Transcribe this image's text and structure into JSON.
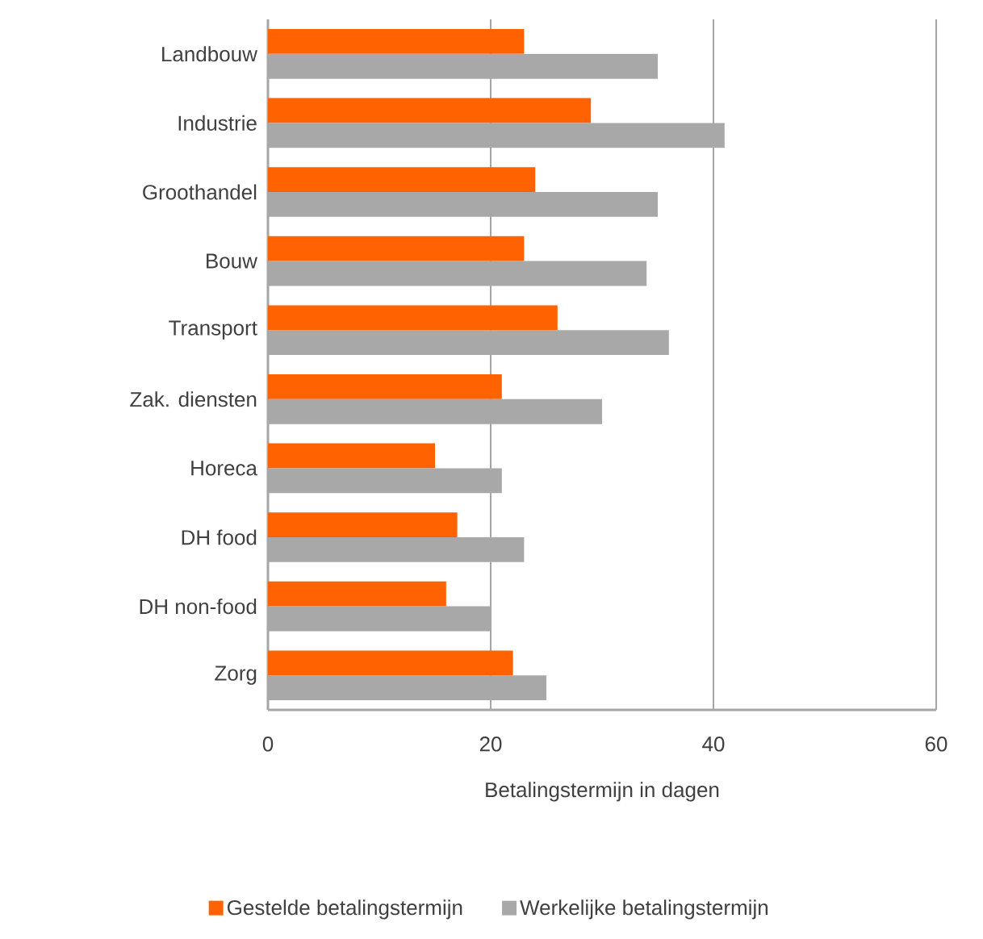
{
  "chart_data": {
    "type": "bar",
    "orientation": "horizontal",
    "xlabel": "Betalingstermijn in dagen",
    "categories": [
      "Landbouw",
      "Industrie",
      "Groothandel",
      "Bouw",
      "Transport",
      "Zak. diensten",
      "Horeca",
      "DH food",
      "DH non-food",
      "Zorg"
    ],
    "series": [
      {
        "name": "Gestelde betalingstermijn",
        "color": "#ff6200",
        "values": [
          23,
          29,
          24,
          23,
          26,
          21,
          15,
          17,
          16,
          22
        ]
      },
      {
        "name": "Werkelijke betalingstermijn",
        "color": "#a8a8a8",
        "values": [
          35,
          41,
          35,
          34,
          36,
          30,
          21,
          23,
          20,
          25
        ]
      }
    ],
    "xlim": [
      0,
      60
    ],
    "xticks": [
      0,
      20,
      40,
      60
    ],
    "grid": "x",
    "legend": "bottom"
  }
}
